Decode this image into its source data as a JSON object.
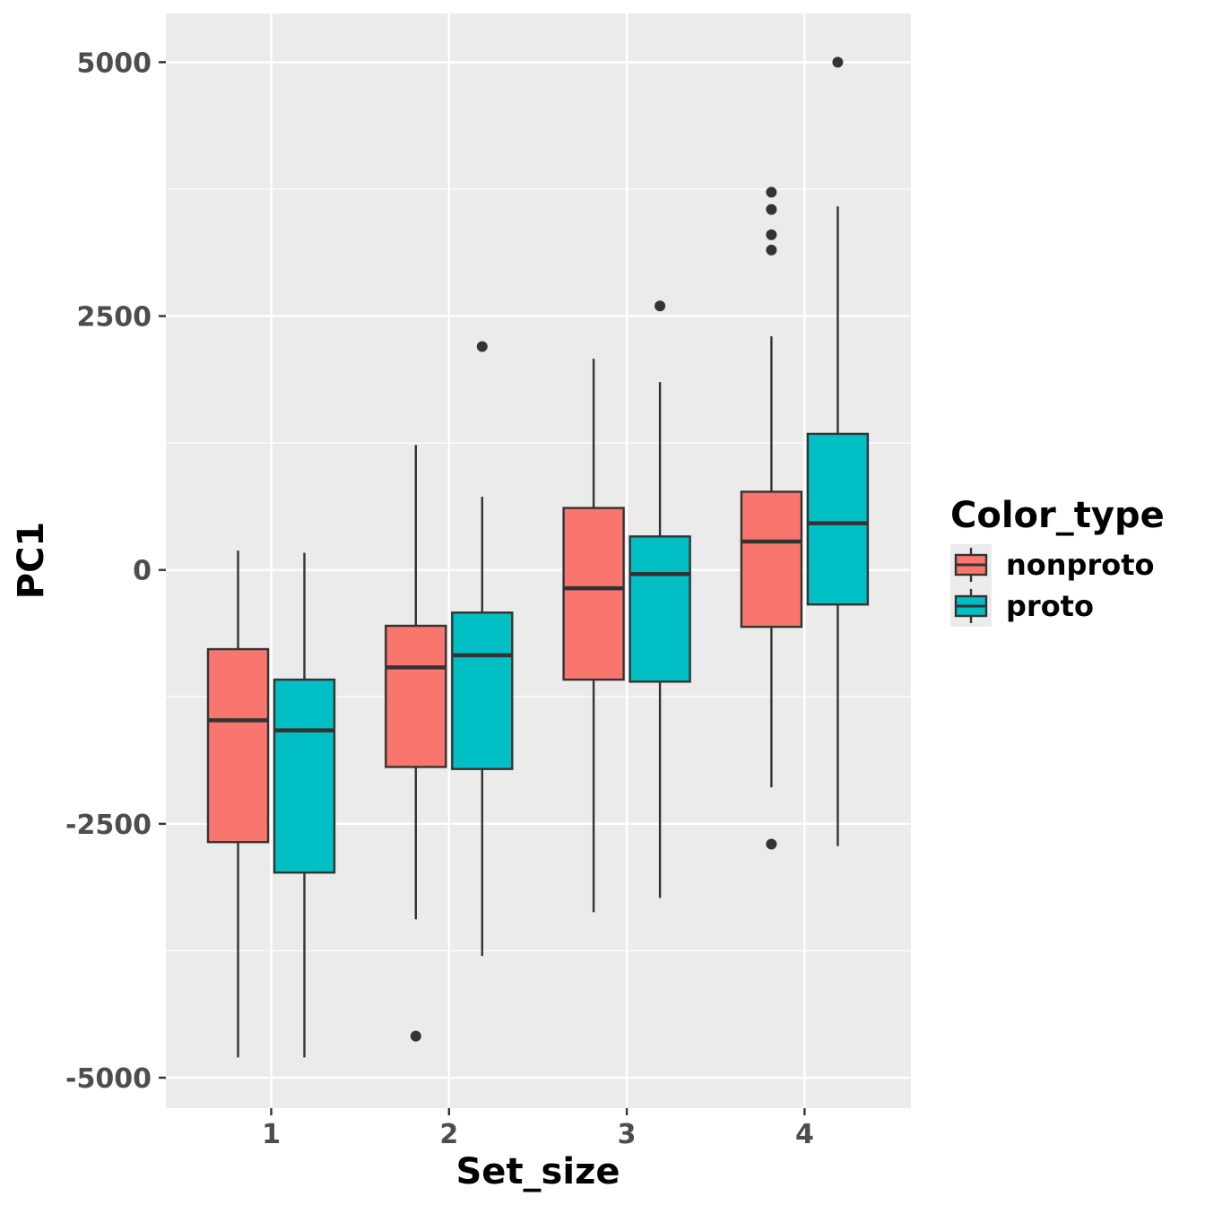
{
  "chart_data": {
    "type": "boxplot",
    "xlabel": "Set_size",
    "ylabel": "PC1",
    "categories": [
      "1",
      "2",
      "3",
      "4"
    ],
    "ylim": [
      -5300,
      5480
    ],
    "yticks": [
      -5000,
      -2500,
      0,
      2500,
      5000
    ],
    "grid": true,
    "legend": {
      "title": "Color_type",
      "position": "right"
    },
    "series": [
      {
        "name": "nonproto",
        "color": "#F8766D",
        "boxes": [
          {
            "category": "1",
            "lower_whisker": -4800,
            "q1": -2680,
            "median": -1480,
            "q3": -780,
            "upper_whisker": 190,
            "outliers": []
          },
          {
            "category": "2",
            "lower_whisker": -3440,
            "q1": -1940,
            "median": -960,
            "q3": -550,
            "upper_whisker": 1230,
            "outliers": [
              -4590
            ]
          },
          {
            "category": "3",
            "lower_whisker": -3370,
            "q1": -1080,
            "median": -180,
            "q3": 610,
            "upper_whisker": 2080,
            "outliers": []
          },
          {
            "category": "4",
            "lower_whisker": -2140,
            "q1": -560,
            "median": 280,
            "q3": 770,
            "upper_whisker": 2300,
            "outliers": [
              3720,
              3550,
              3300,
              3150,
              -2700
            ]
          }
        ]
      },
      {
        "name": "proto",
        "color": "#00BFC4",
        "boxes": [
          {
            "category": "1",
            "lower_whisker": -4800,
            "q1": -2980,
            "median": -1580,
            "q3": -1080,
            "upper_whisker": 170,
            "outliers": []
          },
          {
            "category": "2",
            "lower_whisker": -3800,
            "q1": -1960,
            "median": -840,
            "q3": -420,
            "upper_whisker": 720,
            "outliers": [
              2200
            ]
          },
          {
            "category": "3",
            "lower_whisker": -3230,
            "q1": -1100,
            "median": -40,
            "q3": 330,
            "upper_whisker": 1850,
            "outliers": [
              2600
            ]
          },
          {
            "category": "4",
            "lower_whisker": -2720,
            "q1": -340,
            "median": 460,
            "q3": 1340,
            "upper_whisker": 3580,
            "outliers": [
              5000
            ]
          }
        ]
      }
    ]
  }
}
